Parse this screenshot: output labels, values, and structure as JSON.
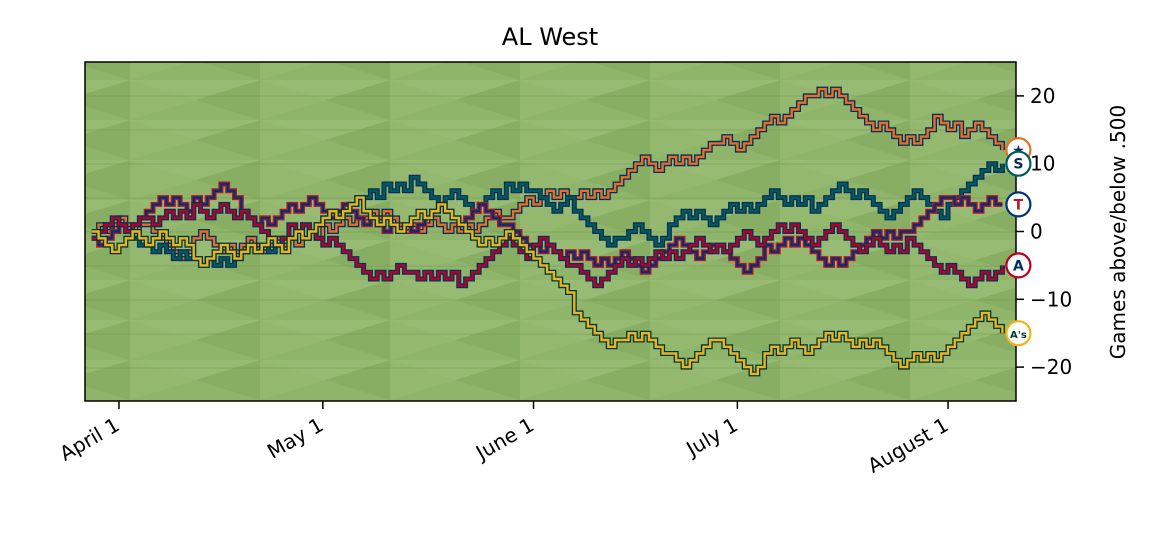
{
  "chart_data": {
    "type": "line",
    "title": "AL West",
    "xlabel": "",
    "ylabel": "Games above/below .500",
    "x_ticks": [
      {
        "date": "2019-04-01",
        "label": "April  1"
      },
      {
        "date": "2019-05-01",
        "label": "May  1"
      },
      {
        "date": "2019-06-01",
        "label": "June  1"
      },
      {
        "date": "2019-07-01",
        "label": "July  1"
      },
      {
        "date": "2019-08-01",
        "label": "August  1"
      }
    ],
    "xlim": [
      "2019-03-27",
      "2019-08-11"
    ],
    "y_ticks": [
      20,
      10,
      0,
      -10,
      -20
    ],
    "ylim": [
      -25,
      25
    ],
    "grid": false,
    "legend": "none",
    "series": [
      {
        "color": "#eb6e1f",
        "edge": "#002d62",
        "icon": "astros-logo",
        "badge_text": "★",
        "points": [
          [
            "2019-03-28",
            0
          ],
          [
            "2019-04-05",
            1
          ],
          [
            "2019-04-12",
            -1
          ],
          [
            "2019-04-19",
            -2
          ],
          [
            "2019-04-26",
            -1
          ],
          [
            "2019-05-01",
            1
          ],
          [
            "2019-05-07",
            2
          ],
          [
            "2019-05-14",
            1
          ],
          [
            "2019-05-21",
            0
          ],
          [
            "2019-05-28",
            2
          ],
          [
            "2019-06-01",
            4
          ],
          [
            "2019-06-07",
            5
          ],
          [
            "2019-06-14",
            8
          ],
          [
            "2019-06-21",
            11
          ],
          [
            "2019-06-28",
            13
          ],
          [
            "2019-07-05",
            16
          ],
          [
            "2019-07-12",
            20
          ],
          [
            "2019-07-19",
            17
          ],
          [
            "2019-07-26",
            14
          ],
          [
            "2019-07-30",
            17
          ],
          [
            "2019-08-03",
            14
          ],
          [
            "2019-08-09",
            12
          ]
        ]
      },
      {
        "color": "#005c5c",
        "edge": "#0c2c56",
        "icon": "mariners-logo",
        "badge_text": "S",
        "points": [
          [
            "2019-03-28",
            -1
          ],
          [
            "2019-04-05",
            -2
          ],
          [
            "2019-04-12",
            -4
          ],
          [
            "2019-04-19",
            -3
          ],
          [
            "2019-04-26",
            -1
          ],
          [
            "2019-05-01",
            2
          ],
          [
            "2019-05-07",
            5
          ],
          [
            "2019-05-10",
            7
          ],
          [
            "2019-05-14",
            8
          ],
          [
            "2019-05-21",
            5
          ],
          [
            "2019-05-28",
            7
          ],
          [
            "2019-06-01",
            6
          ],
          [
            "2019-06-07",
            3
          ],
          [
            "2019-06-14",
            -1
          ],
          [
            "2019-06-21",
            1
          ],
          [
            "2019-06-28",
            2
          ],
          [
            "2019-07-05",
            5
          ],
          [
            "2019-07-12",
            3
          ],
          [
            "2019-07-19",
            6
          ],
          [
            "2019-07-26",
            5
          ],
          [
            "2019-08-01",
            4
          ],
          [
            "2019-08-09",
            10
          ]
        ]
      },
      {
        "color": "#003278",
        "edge": "#c0111f",
        "icon": "rangers-logo",
        "badge_text": "T",
        "points": [
          [
            "2019-03-28",
            -1
          ],
          [
            "2019-04-05",
            3
          ],
          [
            "2019-04-12",
            5
          ],
          [
            "2019-04-19",
            3
          ],
          [
            "2019-04-26",
            4
          ],
          [
            "2019-05-01",
            3
          ],
          [
            "2019-05-07",
            1
          ],
          [
            "2019-05-14",
            0
          ],
          [
            "2019-05-21",
            1
          ],
          [
            "2019-05-28",
            1
          ],
          [
            "2019-06-01",
            -2
          ],
          [
            "2019-06-07",
            -4
          ],
          [
            "2019-06-14",
            -3
          ],
          [
            "2019-06-21",
            -2
          ],
          [
            "2019-06-28",
            -2
          ],
          [
            "2019-07-05",
            -2
          ],
          [
            "2019-07-12",
            -3
          ],
          [
            "2019-07-19",
            -2
          ],
          [
            "2019-07-26",
            0
          ],
          [
            "2019-08-01",
            5
          ],
          [
            "2019-08-09",
            4
          ]
        ]
      },
      {
        "color": "#ba0021",
        "edge": "#003263",
        "icon": "angels-logo",
        "badge_text": "A",
        "points": [
          [
            "2019-03-28",
            -1
          ],
          [
            "2019-04-05",
            2
          ],
          [
            "2019-04-12",
            4
          ],
          [
            "2019-04-19",
            3
          ],
          [
            "2019-04-26",
            1
          ],
          [
            "2019-05-01",
            -2
          ],
          [
            "2019-05-07",
            -6
          ],
          [
            "2019-05-14",
            -6
          ],
          [
            "2019-05-21",
            -8
          ],
          [
            "2019-05-28",
            -1
          ],
          [
            "2019-06-01",
            -2
          ],
          [
            "2019-06-07",
            -5
          ],
          [
            "2019-06-14",
            -4
          ],
          [
            "2019-06-21",
            -3
          ],
          [
            "2019-06-28",
            -2
          ],
          [
            "2019-07-05",
            -1
          ],
          [
            "2019-07-12",
            -2
          ],
          [
            "2019-07-19",
            -3
          ],
          [
            "2019-07-26",
            -1
          ],
          [
            "2019-08-01",
            -5
          ],
          [
            "2019-08-09",
            -5
          ]
        ]
      },
      {
        "color": "#efb21e",
        "edge": "#003831",
        "icon": "athletics-logo",
        "badge_text": "A's",
        "points": [
          [
            "2019-03-28",
            0
          ],
          [
            "2019-04-05",
            -2
          ],
          [
            "2019-04-12",
            -4
          ],
          [
            "2019-04-19",
            -3
          ],
          [
            "2019-04-26",
            -1
          ],
          [
            "2019-05-01",
            2
          ],
          [
            "2019-05-07",
            3
          ],
          [
            "2019-05-14",
            2
          ],
          [
            "2019-05-21",
            1
          ],
          [
            "2019-05-28",
            0
          ],
          [
            "2019-06-01",
            -4
          ],
          [
            "2019-06-07",
            -12
          ],
          [
            "2019-06-14",
            -16
          ],
          [
            "2019-06-21",
            -18
          ],
          [
            "2019-06-28",
            -16
          ],
          [
            "2019-07-05",
            -18
          ],
          [
            "2019-07-12",
            -17
          ],
          [
            "2019-07-19",
            -16
          ],
          [
            "2019-07-26",
            -19
          ],
          [
            "2019-08-01",
            -17
          ],
          [
            "2019-08-09",
            -15
          ]
        ]
      }
    ]
  }
}
